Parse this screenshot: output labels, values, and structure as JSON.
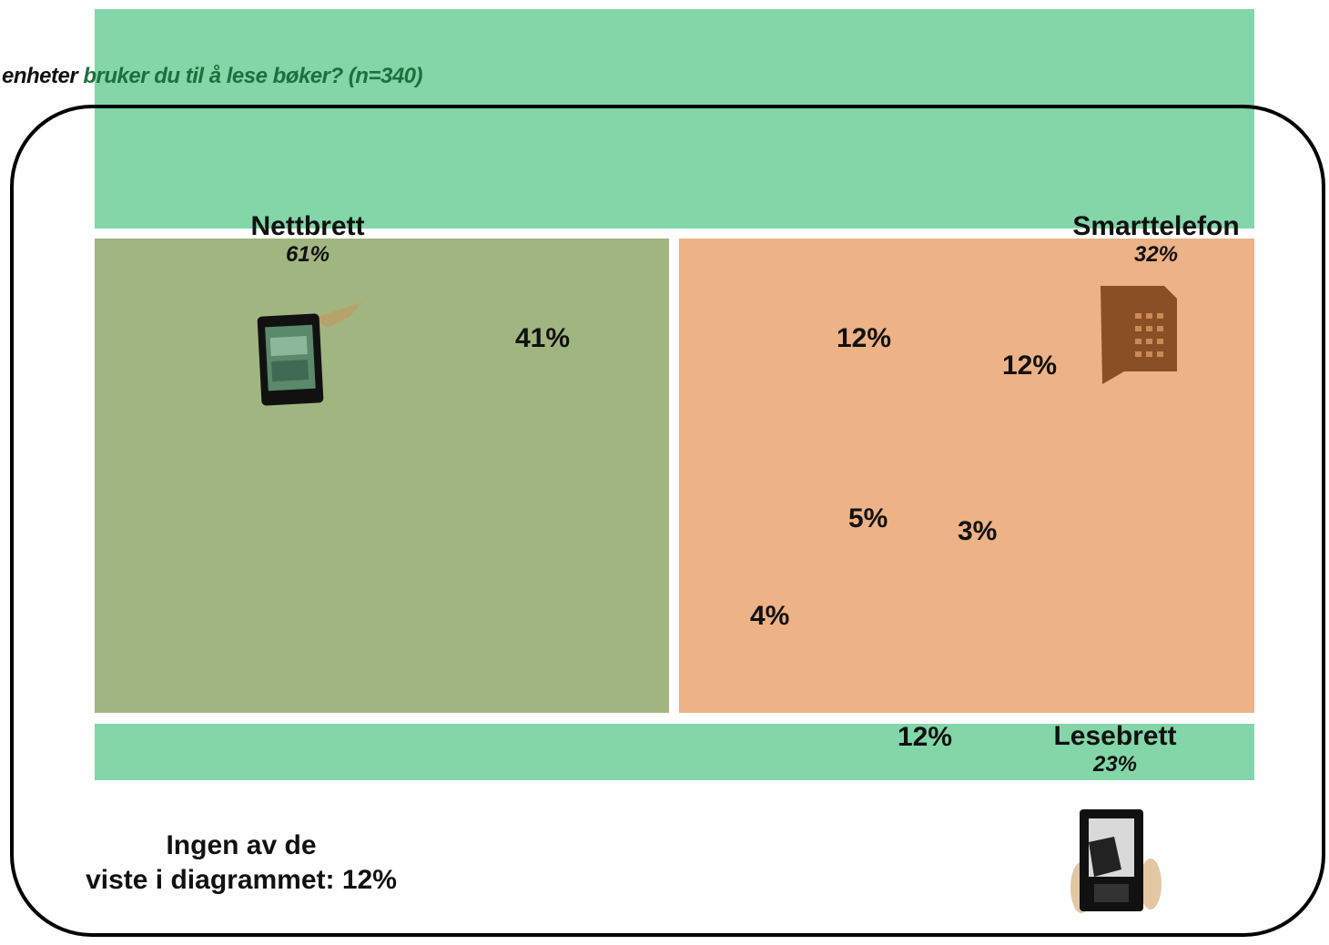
{
  "question": {
    "part1": "enheter",
    "part2": "bruker du til å lese bøker? (n=340)"
  },
  "categories": [
    {
      "name": "Nettbrett",
      "pct": "61%",
      "icon": "tablet-icon"
    },
    {
      "name": "Smarttelefon",
      "pct": "32%",
      "icon": "smartphone-icon"
    },
    {
      "name": "Lesebrett",
      "pct": "23%",
      "icon": "ereader-icon"
    }
  ],
  "region_labels": {
    "tablet_only": "41%",
    "tablet_phone": "12%",
    "phone_only": "12%",
    "all_three": "5%",
    "phone_ereader": "3%",
    "tablet_ereader": "4%",
    "ereader_only": "12%"
  },
  "none_label": {
    "line1": "Ingen av de",
    "line2": "viste i diagrammet: 12%"
  },
  "colors": {
    "ereader_band": "#82d6a8",
    "tablet_region": "#a1b581",
    "phone_region": "#edb286"
  }
}
